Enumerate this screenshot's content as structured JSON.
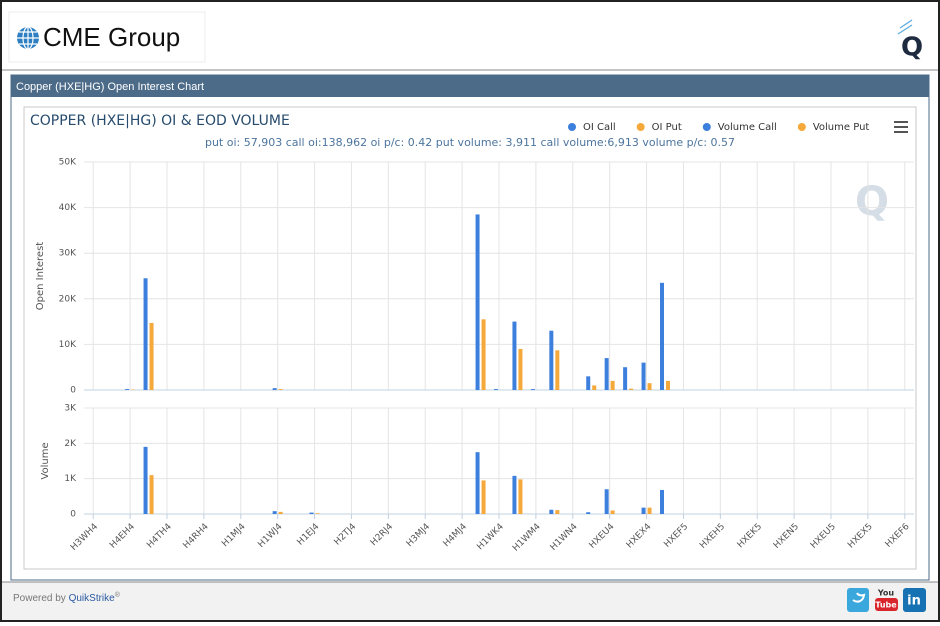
{
  "header": {
    "logo": "CME Group",
    "badge": "Q"
  },
  "panel_title": "Copper (HXE|HG) Open Interest Chart",
  "footer": {
    "powered_by": "Powered by",
    "brand": "QuikStrike",
    "mark": "®",
    "social": [
      "You",
      "Tube",
      "in"
    ]
  },
  "chart_data": [
    {
      "type": "bar",
      "title": "COPPER (HXE|HG) OI & EOD VOLUME",
      "subtitle": "put oi: 57,903 call oi:138,962 oi p/c: 0.42 put volume: 3,911 call volume:6,913 volume p/c: 0.57",
      "y_label": "Open Interest",
      "grid": true,
      "legend": "top-right",
      "categories": [
        "H3WH4",
        null,
        "H4EH4",
        null,
        "H4TH4",
        null,
        "H4RH4",
        null,
        "H1MJ4",
        null,
        "H1WJ4",
        null,
        "H1EJ4",
        null,
        "H2TJ4",
        null,
        "H2RJ4",
        null,
        "H3MJ4",
        null,
        "H4MJ4",
        null,
        "H1WK4",
        null,
        "H1WM4",
        null,
        "H1WN4",
        null,
        "HXEU4",
        null,
        "HXEX4",
        null,
        "HXEF5",
        null,
        "HXEH5",
        null,
        "HXEK5",
        null,
        "HXEN5",
        null,
        "HXEU5",
        null,
        "HXEX5",
        null,
        "HXEF6"
      ],
      "ylim": [
        0,
        50000
      ],
      "yticks": [
        0,
        {
          "value": 10000,
          "label": "10K"
        },
        {
          "value": 20000,
          "label": "20K"
        },
        {
          "value": 30000,
          "label": "30K"
        },
        {
          "value": 40000,
          "label": "40K"
        },
        {
          "value": 50000,
          "label": "50K"
        }
      ],
      "series": [
        {
          "name": "OI Call",
          "color": "#3d7fdc",
          "values": [
            0,
            0,
            200,
            24500,
            0,
            0,
            0,
            0,
            0,
            0,
            400,
            0,
            0,
            0,
            0,
            0,
            0,
            0,
            0,
            0,
            0,
            38500,
            200,
            15000,
            200,
            13000,
            0,
            3000,
            7000,
            5000,
            6000,
            23500,
            0,
            0,
            0,
            0,
            0,
            0,
            0,
            0,
            0,
            0,
            0,
            0,
            0
          ]
        },
        {
          "name": "OI Put",
          "color": "#f5a93b",
          "values": [
            0,
            0,
            100,
            14700,
            0,
            0,
            0,
            0,
            0,
            0,
            200,
            0,
            0,
            0,
            0,
            0,
            0,
            0,
            0,
            0,
            0,
            15500,
            0,
            9000,
            0,
            8700,
            0,
            1000,
            2000,
            300,
            1500,
            2000,
            0,
            0,
            0,
            0,
            0,
            0,
            0,
            0,
            0,
            0,
            0,
            0,
            0
          ]
        }
      ]
    },
    {
      "type": "bar",
      "y_label": "Volume",
      "grid": true,
      "ylim": [
        0,
        3000
      ],
      "yticks": [
        0,
        {
          "value": 1000,
          "label": "1K"
        },
        {
          "value": 2000,
          "label": "2K"
        },
        {
          "value": 3000,
          "label": "3K"
        }
      ],
      "series": [
        {
          "name": "Volume Call",
          "color": "#3d7fdc",
          "values": [
            0,
            0,
            0,
            1900,
            0,
            0,
            0,
            0,
            0,
            0,
            80,
            0,
            40,
            0,
            0,
            0,
            0,
            0,
            0,
            0,
            0,
            1750,
            0,
            1080,
            0,
            120,
            0,
            50,
            700,
            0,
            180,
            680,
            0,
            0,
            0,
            0,
            0,
            0,
            0,
            0,
            0,
            0,
            0,
            0,
            0
          ]
        },
        {
          "name": "Volume Put",
          "color": "#f5a93b",
          "values": [
            0,
            0,
            0,
            1100,
            0,
            0,
            0,
            0,
            0,
            0,
            60,
            0,
            20,
            0,
            0,
            0,
            0,
            0,
            0,
            0,
            0,
            950,
            0,
            980,
            0,
            110,
            0,
            0,
            100,
            0,
            180,
            0,
            0,
            0,
            0,
            0,
            0,
            0,
            0,
            0,
            0,
            0,
            0,
            0,
            0
          ]
        }
      ]
    }
  ]
}
